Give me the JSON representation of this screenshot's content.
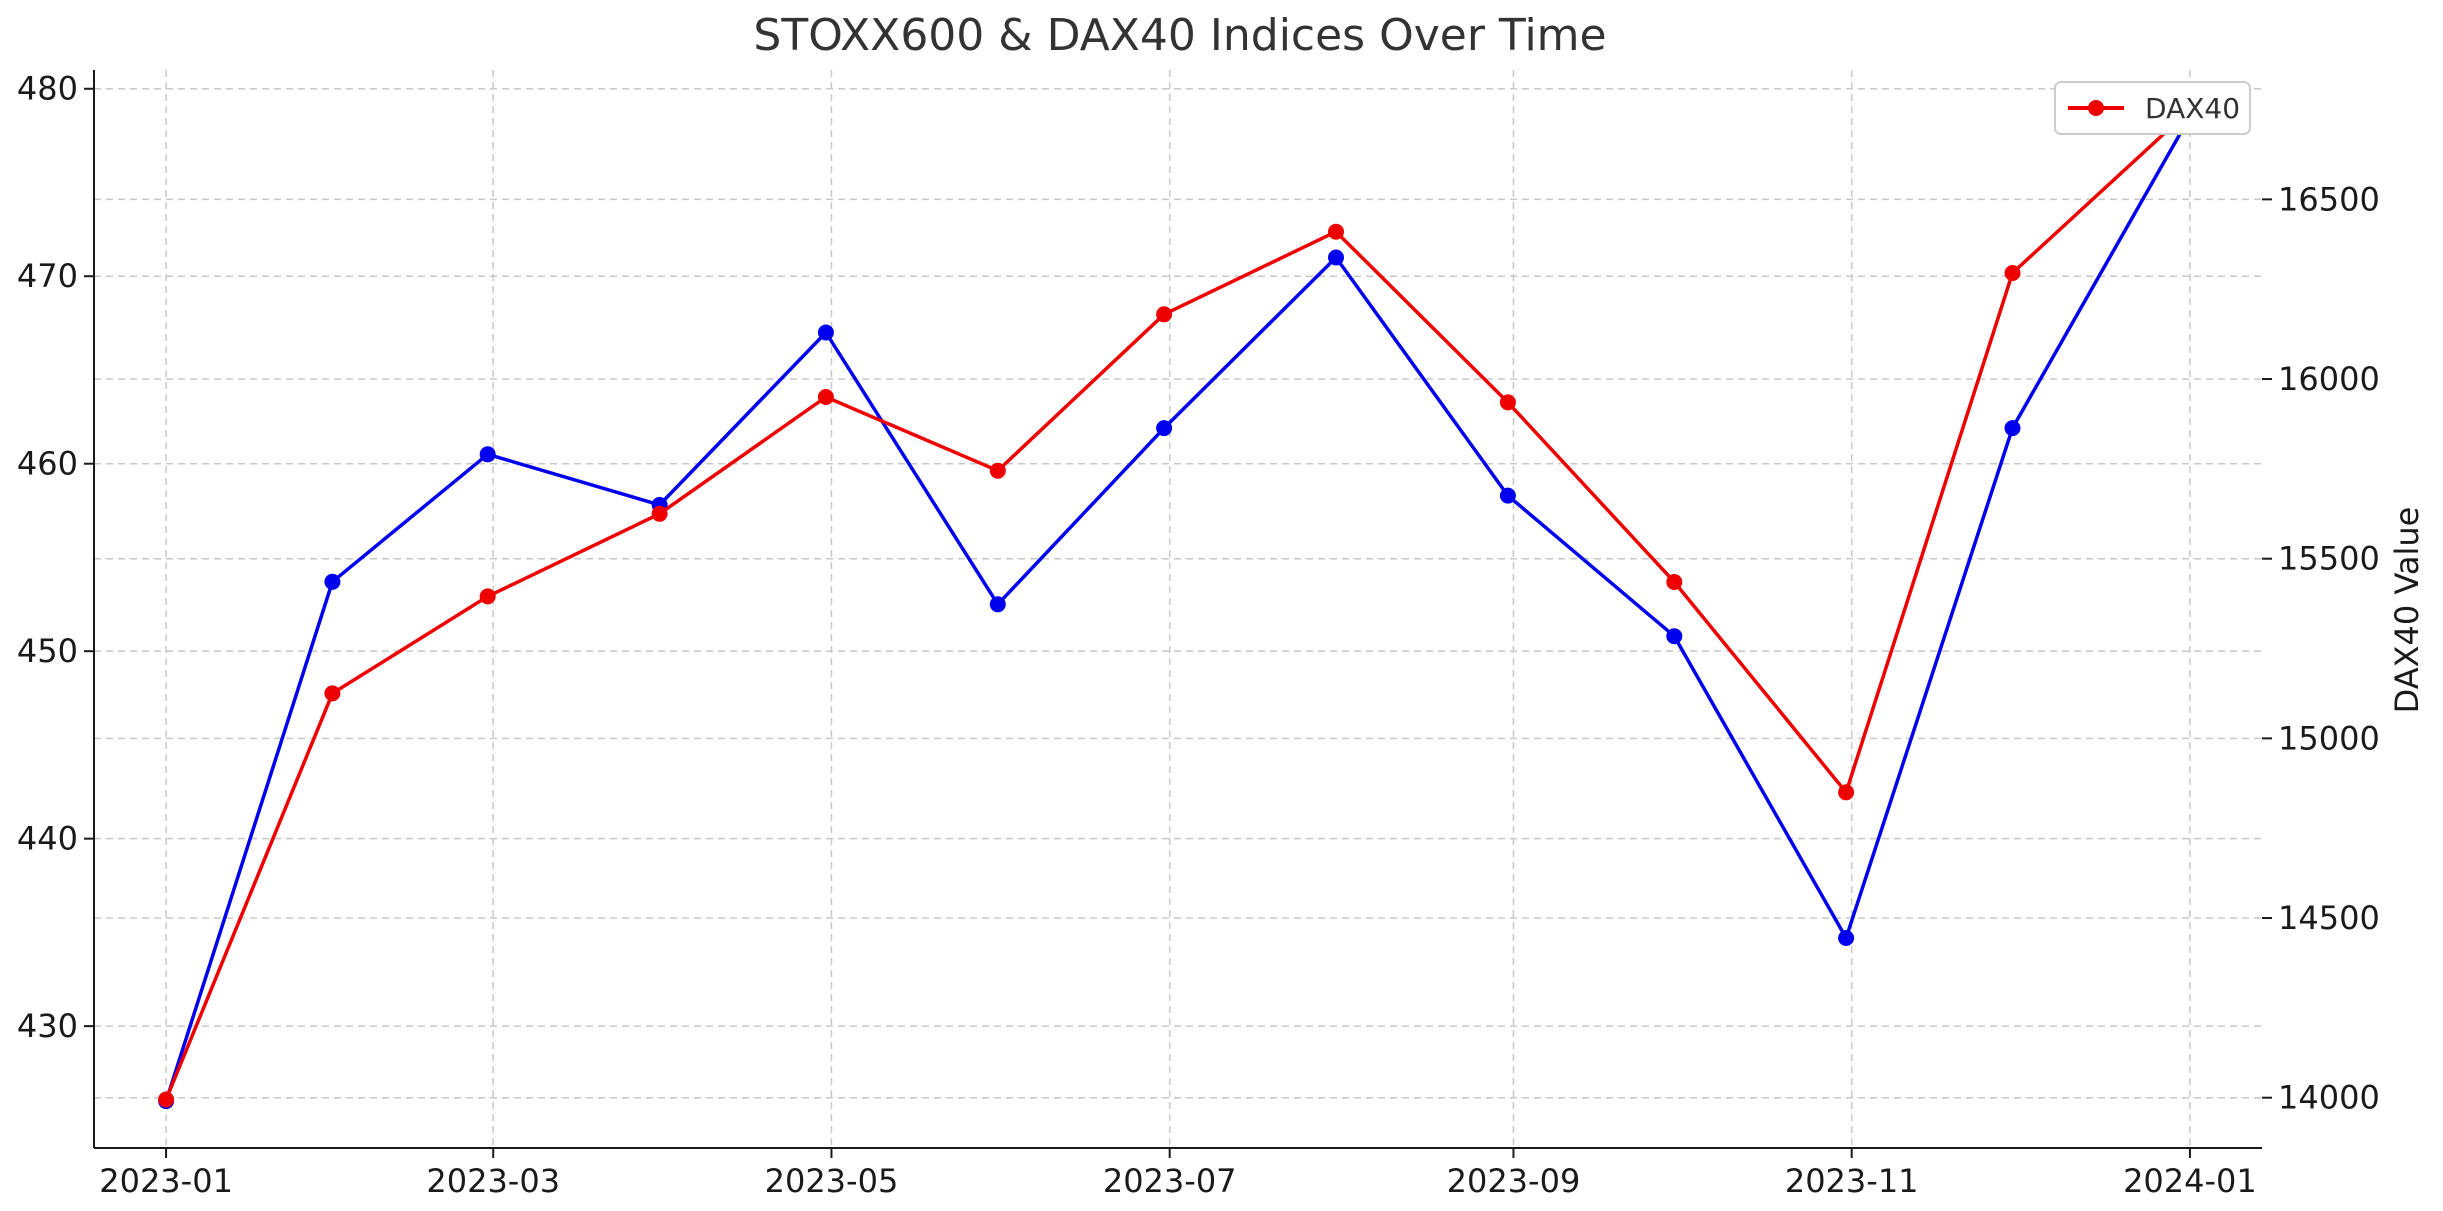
{
  "chart_data": {
    "type": "line",
    "title": "STOXX600 & DAX40 Indices Over Time",
    "xlabel": "",
    "ylabel_left": "",
    "ylabel_right": "DAX40 Value",
    "x": [
      "2023-01-01",
      "2023-01-31",
      "2023-02-28",
      "2023-03-31",
      "2023-04-30",
      "2023-05-31",
      "2023-06-30",
      "2023-07-31",
      "2023-08-31",
      "2023-09-30",
      "2023-10-31",
      "2023-11-30",
      "2023-12-31"
    ],
    "x_ticks": [
      "2023-01",
      "2023-03",
      "2023-05",
      "2023-07",
      "2023-09",
      "2023-11",
      "2024-01"
    ],
    "x_tick_dates": [
      "2023-01-01",
      "2023-03-01",
      "2023-05-01",
      "2023-07-01",
      "2023-09-01",
      "2023-11-01",
      "2024-01-01"
    ],
    "x_range": [
      "2022-12-19",
      "2024-01-14"
    ],
    "y_left_ticks": [
      "430",
      "440",
      "450",
      "460",
      "470",
      "480"
    ],
    "y_left_range": [
      423.5,
      481
    ],
    "y_right_ticks": [
      "14000",
      "14500",
      "15000",
      "15500",
      "16000",
      "16500"
    ],
    "y_right_range": [
      13860,
      16860
    ],
    "series": [
      {
        "name": "",
        "axis": "left",
        "color": "#0000ee",
        "values": [
          426.0,
          453.7,
          460.5,
          457.8,
          467.0,
          452.5,
          461.9,
          471.0,
          458.3,
          450.8,
          434.7,
          461.9,
          478.0
        ]
      },
      {
        "name": "DAX40",
        "axis": "right",
        "color": "#ee0000",
        "values": [
          13995,
          15125,
          15395,
          15625,
          15950,
          15745,
          16180,
          16410,
          15935,
          15435,
          14850,
          16295,
          16735
        ]
      }
    ],
    "legend": {
      "position": "top-right",
      "entries": [
        "DAX40"
      ]
    },
    "grid": true
  }
}
